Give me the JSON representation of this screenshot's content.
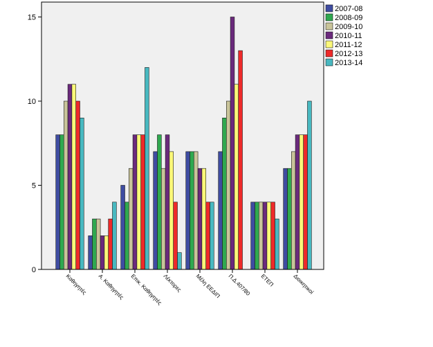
{
  "chart_data": {
    "type": "bar",
    "title": "",
    "xlabel": "",
    "ylabel": "",
    "ylim": [
      0,
      15.5
    ],
    "yticks": [
      0,
      5,
      10,
      15
    ],
    "grid": false,
    "legend_position": "top-right",
    "plot_background": "#f0f0f0",
    "categories": [
      "Καθηγητές",
      "Α. Καθηγητές",
      "Επικ. Καθηγητές",
      "Λέκτορες",
      "Μέλη ΕΕΔΙΠ",
      "Π.Δ.407/80",
      "ΕΤΕΠ",
      "Διοικητικοί"
    ],
    "series": [
      {
        "name": "2007-08",
        "color": "#3f4ca1",
        "values": [
          8,
          2,
          5,
          7,
          7,
          7,
          4,
          6
        ]
      },
      {
        "name": "2008-09",
        "color": "#2fa84f",
        "values": [
          8,
          3,
          4,
          8,
          7,
          9,
          4,
          6
        ]
      },
      {
        "name": "2009-10",
        "color": "#c9c49a",
        "values": [
          10,
          3,
          6,
          6,
          7,
          10,
          4,
          7
        ]
      },
      {
        "name": "2010-11",
        "color": "#6b2a7d",
        "values": [
          11,
          2,
          8,
          8,
          6,
          15,
          4,
          8
        ]
      },
      {
        "name": "2011-12",
        "color": "#fbf879",
        "values": [
          11,
          2,
          8,
          7,
          6,
          11,
          4,
          8
        ]
      },
      {
        "name": "2012-13",
        "color": "#ee2a2a",
        "values": [
          10,
          3,
          8,
          4,
          4,
          13,
          4,
          8
        ]
      },
      {
        "name": "2013-14",
        "color": "#48b8c0",
        "values": [
          9,
          4,
          12,
          1,
          4,
          0,
          3,
          10
        ]
      }
    ]
  }
}
